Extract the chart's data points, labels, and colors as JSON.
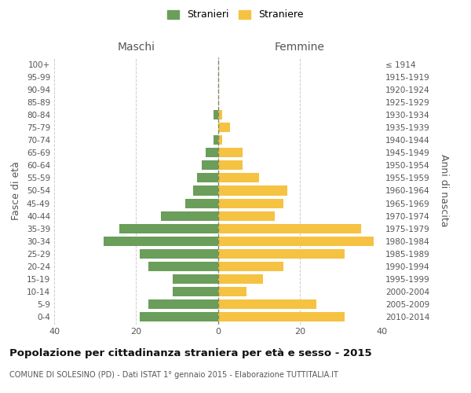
{
  "age_groups": [
    "0-4",
    "5-9",
    "10-14",
    "15-19",
    "20-24",
    "25-29",
    "30-34",
    "35-39",
    "40-44",
    "45-49",
    "50-54",
    "55-59",
    "60-64",
    "65-69",
    "70-74",
    "75-79",
    "80-84",
    "85-89",
    "90-94",
    "95-99",
    "100+"
  ],
  "birth_years": [
    "2010-2014",
    "2005-2009",
    "2000-2004",
    "1995-1999",
    "1990-1994",
    "1985-1989",
    "1980-1984",
    "1975-1979",
    "1970-1974",
    "1965-1969",
    "1960-1964",
    "1955-1959",
    "1950-1954",
    "1945-1949",
    "1940-1944",
    "1935-1939",
    "1930-1934",
    "1925-1929",
    "1920-1924",
    "1915-1919",
    "≤ 1914"
  ],
  "maschi": [
    19,
    17,
    11,
    11,
    17,
    19,
    28,
    24,
    14,
    8,
    6,
    5,
    4,
    3,
    1,
    0,
    1,
    0,
    0,
    0,
    0
  ],
  "femmine": [
    31,
    24,
    7,
    11,
    16,
    31,
    38,
    35,
    14,
    16,
    17,
    10,
    6,
    6,
    1,
    3,
    1,
    0,
    0,
    0,
    0
  ],
  "color_maschi": "#6a9e5a",
  "color_femmine": "#f5c242",
  "title": "Popolazione per cittadinanza straniera per età e sesso - 2015",
  "subtitle": "COMUNE DI SOLESINO (PD) - Dati ISTAT 1° gennaio 2015 - Elaborazione TUTTITALIA.IT",
  "xlabel_left": "Maschi",
  "xlabel_right": "Femmine",
  "ylabel_left": "Fasce di età",
  "ylabel_right": "Anni di nascita",
  "legend_maschi": "Stranieri",
  "legend_femmine": "Straniere",
  "xlim": 40,
  "background_color": "#ffffff",
  "grid_color": "#cccccc"
}
